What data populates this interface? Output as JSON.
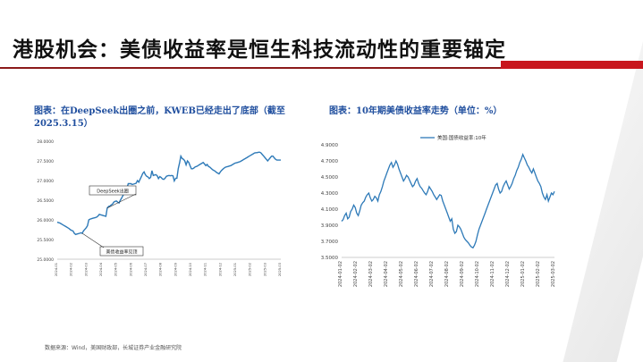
{
  "page": {
    "title": "港股机会：美债收益率是恒生科技流动性的重要锚定",
    "source": "数据来源：Wind，美国财政部，长城证券产业金融研究院"
  },
  "colors": {
    "line": "#2e7ab8",
    "title_text": "#1f4e9e",
    "accent_red": "#c8161d",
    "accent_dark": "#8b1a1a"
  },
  "chart_data": [
    {
      "type": "line",
      "title": "图表：在DeepSeek出圈之前，KWEB已经走出了底部（截至2025.3.15）",
      "ylim": [
        25,
        28
      ],
      "y_ticks": [
        "25.0000",
        "25.5000",
        "26.0000",
        "26.5000",
        "27.0000",
        "27.5000",
        "28.0000"
      ],
      "x_ticks": [
        "2024-01",
        "2024-02",
        "2024-03",
        "2024-04",
        "2024-05",
        "2024-06",
        "2024-07",
        "2024-08",
        "2024-09",
        "2024-10",
        "2024-11",
        "2024-12",
        "2025-01",
        "2025-02",
        "2025-03",
        "2025-03"
      ],
      "annotations": [
        "DeepSeek出圈",
        "美债收益率见顶"
      ],
      "series": [
        {
          "values": [
            25.94,
            25.93,
            25.92,
            25.9,
            25.88,
            25.86,
            25.84,
            25.82,
            25.8,
            25.78,
            25.75,
            25.73,
            25.72,
            25.66,
            25.63,
            25.64,
            25.65,
            25.66,
            25.67,
            25.66,
            25.72,
            25.76,
            25.8,
            25.85,
            26.0,
            26.02,
            26.03,
            26.04,
            26.05,
            26.06,
            26.07,
            26.1,
            26.14,
            26.13,
            26.12,
            26.11,
            26.1,
            26.09,
            26.3,
            26.34,
            26.35,
            26.38,
            26.4,
            26.45,
            26.47,
            26.48,
            26.45,
            26.43,
            26.5,
            26.56,
            26.62,
            26.68,
            26.7,
            26.8,
            26.92,
            26.92,
            26.92,
            26.9,
            26.91,
            26.92,
            26.93,
            27.0,
            26.96,
            27.03,
            27.1,
            27.18,
            27.22,
            27.15,
            27.11,
            27.09,
            27.05,
            27.08,
            27.25,
            27.13,
            27.14,
            27.15,
            27.12,
            27.05,
            27.1,
            27.08,
            27.04,
            27.03,
            27.06,
            27.11,
            27.12,
            27.13,
            27.12,
            27.13,
            27.12,
            26.99,
            27.06,
            27.06,
            27.3,
            27.45,
            27.62,
            27.56,
            27.54,
            27.5,
            27.4,
            27.5,
            27.46,
            27.38,
            27.3,
            27.3,
            27.32,
            27.35,
            27.36,
            27.38,
            27.4,
            27.42,
            27.44,
            27.46,
            27.42,
            27.38,
            27.41,
            27.36,
            27.34,
            27.31,
            27.28,
            27.26,
            27.24,
            27.21,
            27.19,
            27.17,
            27.22,
            27.26,
            27.29,
            27.32,
            27.34,
            27.35,
            27.36,
            27.37,
            27.38,
            27.4,
            27.42,
            27.44,
            27.45,
            27.46,
            27.47,
            27.48,
            27.5,
            27.52,
            27.54,
            27.56,
            27.58,
            27.6,
            27.62,
            27.64,
            27.66,
            27.68,
            27.7,
            27.71,
            27.71,
            27.72,
            27.72,
            27.7,
            27.66,
            27.62,
            27.58,
            27.54,
            27.5,
            27.54,
            27.58,
            27.62,
            27.62,
            27.58,
            27.54,
            27.52,
            27.52,
            27.52,
            27.52
          ]
        }
      ]
    },
    {
      "type": "line",
      "title": "图表：10年期美债收益率走势（单位：%）",
      "ylim": [
        3.5,
        4.9
      ],
      "y_ticks": [
        "3.5000",
        "3.7000",
        "3.9000",
        "4.1000",
        "4.3000",
        "4.5000",
        "4.7000",
        "4.9000"
      ],
      "x_ticks": [
        "2024-01-02",
        "2024-02-02",
        "2024-03-02",
        "2024-04-02",
        "2024-05-02",
        "2024-06-02",
        "2024-07-02",
        "2024-08-02",
        "2024-09-02",
        "2024-10-02",
        "2024-11-02",
        "2024-12-02",
        "2025-01-02",
        "2025-02-02",
        "2025-03-02"
      ],
      "legend": "美国:国债收益率:10年",
      "series": [
        {
          "name": "美国:国债收益率:10年",
          "values": [
            3.95,
            3.97,
            4.02,
            4.05,
            3.98,
            4.0,
            4.07,
            4.1,
            4.15,
            4.12,
            4.05,
            4.02,
            4.08,
            4.15,
            4.18,
            4.2,
            4.25,
            4.28,
            4.3,
            4.24,
            4.2,
            4.22,
            4.26,
            4.24,
            4.2,
            4.28,
            4.32,
            4.38,
            4.45,
            4.5,
            4.55,
            4.6,
            4.65,
            4.68,
            4.62,
            4.65,
            4.7,
            4.66,
            4.6,
            4.55,
            4.5,
            4.45,
            4.48,
            4.52,
            4.5,
            4.46,
            4.42,
            4.38,
            4.4,
            4.45,
            4.48,
            4.42,
            4.38,
            4.36,
            4.33,
            4.3,
            4.28,
            4.32,
            4.38,
            4.35,
            4.32,
            4.28,
            4.25,
            4.22,
            4.25,
            4.28,
            4.27,
            4.2,
            4.15,
            4.1,
            4.05,
            4.0,
            3.95,
            3.98,
            3.85,
            3.8,
            3.82,
            3.9,
            3.88,
            3.85,
            3.8,
            3.75,
            3.72,
            3.7,
            3.68,
            3.65,
            3.63,
            3.62,
            3.65,
            3.7,
            3.78,
            3.85,
            3.9,
            3.95,
            4.0,
            4.05,
            4.1,
            4.15,
            4.2,
            4.25,
            4.3,
            4.35,
            4.4,
            4.42,
            4.35,
            4.3,
            4.32,
            4.38,
            4.42,
            4.45,
            4.4,
            4.35,
            4.38,
            4.42,
            4.48,
            4.52,
            4.58,
            4.62,
            4.68,
            4.72,
            4.78,
            4.74,
            4.7,
            4.65,
            4.62,
            4.58,
            4.55,
            4.6,
            4.55,
            4.5,
            4.45,
            4.42,
            4.38,
            4.3,
            4.25,
            4.22,
            4.28,
            4.2,
            4.25,
            4.3,
            4.28,
            4.32
          ]
        }
      ]
    }
  ]
}
